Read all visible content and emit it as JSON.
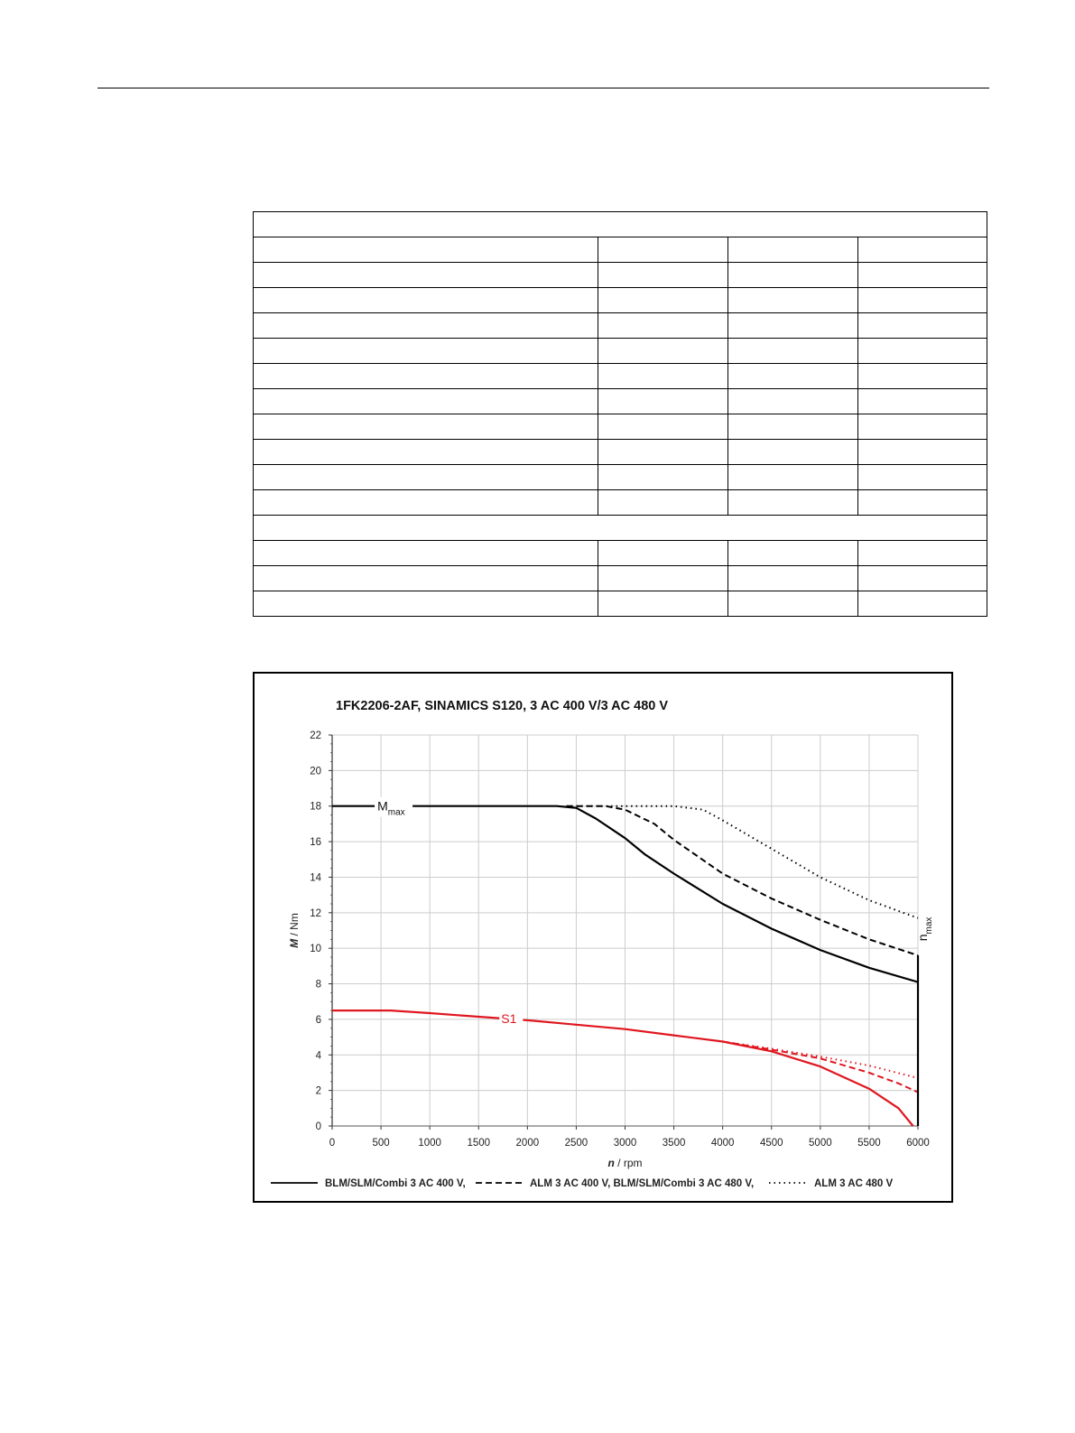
{
  "table": {
    "rows": [
      {
        "kind": "header",
        "cells": [
          ""
        ]
      },
      {
        "kind": "row",
        "cells": [
          "",
          "",
          "",
          ""
        ]
      },
      {
        "kind": "row",
        "cells": [
          "",
          "",
          "",
          ""
        ]
      },
      {
        "kind": "row",
        "cells": [
          "",
          "",
          "",
          ""
        ]
      },
      {
        "kind": "row",
        "cells": [
          "",
          "",
          "",
          ""
        ]
      },
      {
        "kind": "row",
        "cells": [
          "",
          "",
          "",
          ""
        ]
      },
      {
        "kind": "row",
        "cells": [
          "",
          "",
          "",
          ""
        ]
      },
      {
        "kind": "row",
        "cells": [
          "",
          "",
          "",
          ""
        ]
      },
      {
        "kind": "row",
        "cells": [
          "",
          "",
          "",
          ""
        ]
      },
      {
        "kind": "row",
        "cells": [
          "",
          "",
          "",
          ""
        ]
      },
      {
        "kind": "row",
        "cells": [
          "",
          "",
          "",
          ""
        ]
      },
      {
        "kind": "row",
        "cells": [
          "",
          "",
          "",
          ""
        ]
      },
      {
        "kind": "header",
        "cells": [
          ""
        ]
      },
      {
        "kind": "row",
        "cells": [
          "",
          "",
          "",
          ""
        ]
      },
      {
        "kind": "row",
        "cells": [
          "",
          "",
          "",
          ""
        ]
      },
      {
        "kind": "row",
        "cells": [
          "",
          "",
          "",
          ""
        ]
      }
    ]
  },
  "chart_data": {
    "type": "line",
    "title": "1FK2206-2AF,  SINAMICS S120,  3 AC 400 V/3 AC 480 V",
    "xlabel_italic": "n",
    "xlabel_rest": " / rpm",
    "ylabel_italic": "M",
    "ylabel_rest": " / Nm",
    "xlim": [
      0,
      6000
    ],
    "ylim": [
      0,
      22
    ],
    "xticks": [
      0,
      500,
      1000,
      1500,
      2000,
      2500,
      3000,
      3500,
      4000,
      4500,
      5000,
      5500,
      6000
    ],
    "yticks": [
      0,
      2,
      4,
      6,
      8,
      10,
      12,
      14,
      16,
      18,
      20,
      22
    ],
    "grid": true,
    "annotations": {
      "mmax_main": "M",
      "mmax_sub": "max",
      "s1": "S1",
      "nmax_main": "n",
      "nmax_sub": "max"
    },
    "legend": {
      "placement": "bottom",
      "entries": [
        {
          "label": "BLM/SLM/Combi 3 AC 400 V,",
          "style": "solid"
        },
        {
          "label": "ALM 3 AC 400 V, BLM/SLM/Combi 3 AC 480 V,",
          "style": "dashed"
        },
        {
          "label": "ALM 3 AC 480 V",
          "style": "dotted"
        }
      ]
    },
    "colors": {
      "mmax": "#000000",
      "s1": "#e0161f",
      "grid": "#cccccc"
    },
    "series": [
      {
        "group": "mmax",
        "style": "solid",
        "x": [
          0,
          2300,
          2500,
          2700,
          3000,
          3200,
          3500,
          4000,
          4500,
          5000,
          5500,
          6000
        ],
        "y": [
          18,
          18,
          17.9,
          17.3,
          16.2,
          15.3,
          14.2,
          12.5,
          11.1,
          9.9,
          8.9,
          8.1
        ]
      },
      {
        "group": "mmax",
        "style": "dashed",
        "x": [
          2400,
          2800,
          3000,
          3300,
          3500,
          4000,
          4500,
          5000,
          5500,
          6000
        ],
        "y": [
          18,
          18,
          17.8,
          17.0,
          16.1,
          14.2,
          12.8,
          11.6,
          10.5,
          9.6
        ]
      },
      {
        "group": "mmax",
        "style": "dotted",
        "x": [
          2400,
          3000,
          3500,
          3800,
          4000,
          4500,
          5000,
          5500,
          6000
        ],
        "y": [
          18,
          18,
          18,
          17.8,
          17.2,
          15.6,
          14.0,
          12.7,
          11.7
        ]
      },
      {
        "group": "s1",
        "style": "solid",
        "x": [
          0,
          600,
          1000,
          1500,
          2000,
          2500,
          3000,
          3500,
          4000,
          4500,
          5000,
          5500,
          5800,
          5950
        ],
        "y": [
          6.5,
          6.5,
          6.35,
          6.15,
          5.95,
          5.7,
          5.45,
          5.1,
          4.75,
          4.2,
          3.35,
          2.1,
          1.0,
          0
        ]
      },
      {
        "group": "s1",
        "style": "dashed",
        "x": [
          4000,
          4500,
          5000,
          5500,
          5800,
          6000
        ],
        "y": [
          4.75,
          4.3,
          3.8,
          3.0,
          2.4,
          1.9
        ]
      },
      {
        "group": "s1",
        "style": "dotted",
        "x": [
          4000,
          4500,
          5000,
          5500,
          6000
        ],
        "y": [
          4.75,
          4.35,
          3.9,
          3.4,
          2.7
        ]
      }
    ]
  }
}
